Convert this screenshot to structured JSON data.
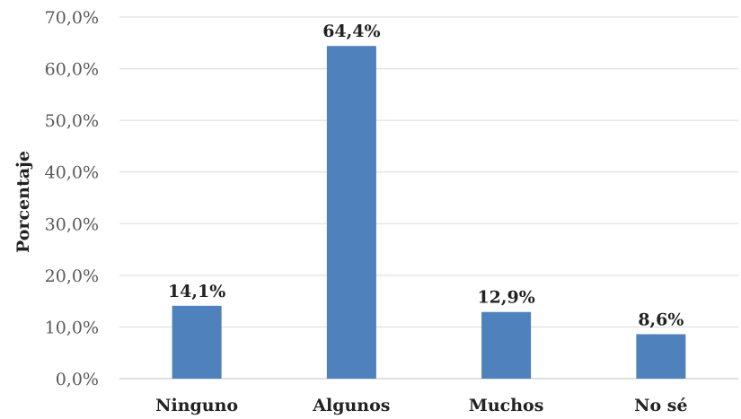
{
  "chart_data": {
    "type": "bar",
    "title": "",
    "xlabel": "",
    "ylabel": "Porcentaje",
    "categories": [
      "Ninguno",
      "Algunos",
      "Muchos",
      "No sé"
    ],
    "values": [
      14.1,
      64.4,
      12.9,
      8.6
    ],
    "data_labels": [
      "14,1%",
      "64,4%",
      "12,9%",
      "8,6%"
    ],
    "ylim": [
      0,
      70
    ],
    "yticks": [
      0,
      10,
      20,
      30,
      40,
      50,
      60,
      70
    ],
    "ytick_labels": [
      "0,0%",
      "10,0%",
      "20,0%",
      "30,0%",
      "40,0%",
      "50,0%",
      "60,0%",
      "70,0%"
    ],
    "grid": true,
    "legend": "none",
    "bar_color": "#4f81bd"
  }
}
